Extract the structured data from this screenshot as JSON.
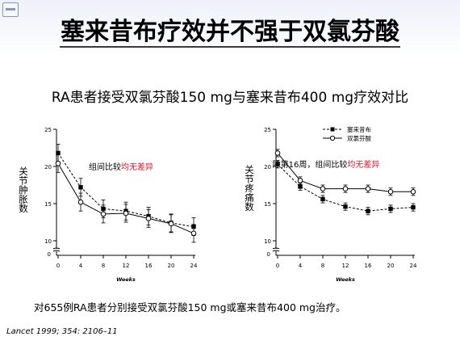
{
  "slide": {
    "title": "塞来昔布疗效并不强于双氯芬酸",
    "subtitle": "RA患者接受双氯芬酸150 mg与塞来昔布400 mg疗效对比",
    "footnote": "对655例RA患者分别接受双氯芬酸150 mg或塞来昔布400 mg治疗。",
    "reference": "Lancet 1999; 354: 2106–11"
  },
  "colors": {
    "accent_red": "#e0142a",
    "line": "#000000"
  },
  "chart_data": [
    {
      "type": "line",
      "title": "",
      "xlabel": "Weeks",
      "ylabel": "关节肿胀数",
      "x": [
        0,
        4,
        8,
        12,
        16,
        20,
        24
      ],
      "xticks": [
        "0",
        "4",
        "8",
        "12",
        "16",
        "20",
        "24"
      ],
      "ylim": [
        10,
        25
      ],
      "yticks": [
        "10",
        "15",
        "20",
        "25"
      ],
      "axis_break": true,
      "grid": false,
      "annotation": {
        "prefix": "组间比较",
        "highlight": "均无差异"
      },
      "series": [
        {
          "name": "塞来昔布",
          "marker": "square-filled",
          "dash": true,
          "values": [
            21.8,
            17.2,
            14.3,
            14.0,
            13.3,
            12.4,
            11.9
          ],
          "errors": [
            1.2,
            1.2,
            1.2,
            1.2,
            1.2,
            1.2,
            1.2
          ]
        },
        {
          "name": "双氯芬酸",
          "marker": "circle-open",
          "dash": false,
          "values": [
            20.4,
            15.2,
            13.6,
            13.7,
            13.0,
            12.3,
            11.0
          ],
          "errors": [
            1.2,
            1.2,
            1.2,
            1.2,
            1.2,
            1.2,
            1.2
          ]
        }
      ]
    },
    {
      "type": "line",
      "title": "",
      "xlabel": "Weeks",
      "ylabel": "关节疼痛数",
      "x": [
        0,
        4,
        8,
        12,
        16,
        20,
        24
      ],
      "xticks": [
        "0",
        "4",
        "8",
        "12",
        "16",
        "20",
        "24"
      ],
      "ylim": [
        10,
        25
      ],
      "yticks": [
        "10",
        "15",
        "20",
        "25"
      ],
      "axis_break": true,
      "grid": false,
      "legend": "top-right",
      "annotation": {
        "prefix": "除第16周，组间比较",
        "highlight": "均无差异"
      },
      "series": [
        {
          "name": "塞来昔布",
          "marker": "square-filled",
          "dash": true,
          "values": [
            20.3,
            17.3,
            15.6,
            14.6,
            14.0,
            14.3,
            14.5
          ],
          "errors": [
            0.5,
            0.5,
            0.5,
            0.5,
            0.5,
            0.5,
            0.5
          ]
        },
        {
          "name": "双氯芬酸",
          "marker": "circle-open",
          "dash": false,
          "values": [
            21.8,
            18.1,
            17.0,
            17.0,
            17.0,
            16.6,
            16.6
          ],
          "errors": [
            0.5,
            0.5,
            0.5,
            0.5,
            0.5,
            0.5,
            0.5
          ]
        }
      ]
    }
  ]
}
